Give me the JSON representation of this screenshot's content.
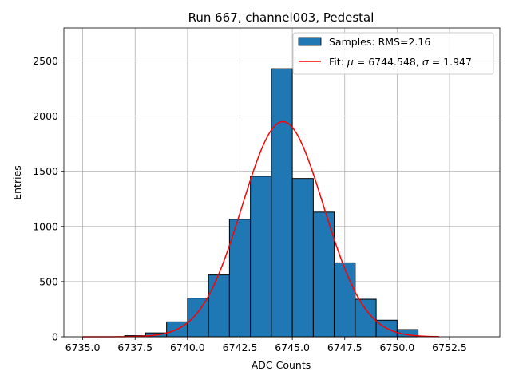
{
  "chart_data": {
    "type": "bar",
    "title": "Run 667, channel003, Pedestal",
    "xlabel": "ADC Counts",
    "ylabel": "Entries",
    "xlim": [
      6734.1,
      6754.9
    ],
    "ylim": [
      0,
      2800
    ],
    "xticks": [
      "6735.0",
      "6737.5",
      "6740.0",
      "6742.5",
      "6745.0",
      "6747.5",
      "6750.0",
      "6752.5"
    ],
    "xtick_values": [
      6735.0,
      6737.5,
      6740.0,
      6742.5,
      6745.0,
      6747.5,
      6750.0,
      6752.5
    ],
    "yticks": [
      "0",
      "500",
      "1000",
      "1500",
      "2000",
      "2500"
    ],
    "ytick_values": [
      0,
      500,
      1000,
      1500,
      2000,
      2500
    ],
    "grid": true,
    "legend_position": "top-right",
    "histogram": {
      "name": "Samples: RMS=2.16",
      "color": "#1f77b4",
      "edge_color": "#000000",
      "bin_width": 1.0,
      "bin_edges_start": 6735.0,
      "values": [
        0,
        0,
        10,
        35,
        135,
        350,
        560,
        1065,
        1455,
        2430,
        1435,
        1130,
        670,
        340,
        150,
        65,
        0,
        0,
        0
      ]
    },
    "fit": {
      "name": "Fit: μ = 6744.548, σ = 1.947",
      "label_prefix": "Fit: ",
      "label_mu": "μ",
      "label_mid": " = 6744.548, ",
      "label_sigma": "σ",
      "label_suffix": " = 1.947",
      "color": "#ff0000",
      "mu": 6744.548,
      "sigma": 1.947,
      "amplitude": 1950,
      "x_range": [
        6735.0,
        6752.0
      ]
    }
  }
}
